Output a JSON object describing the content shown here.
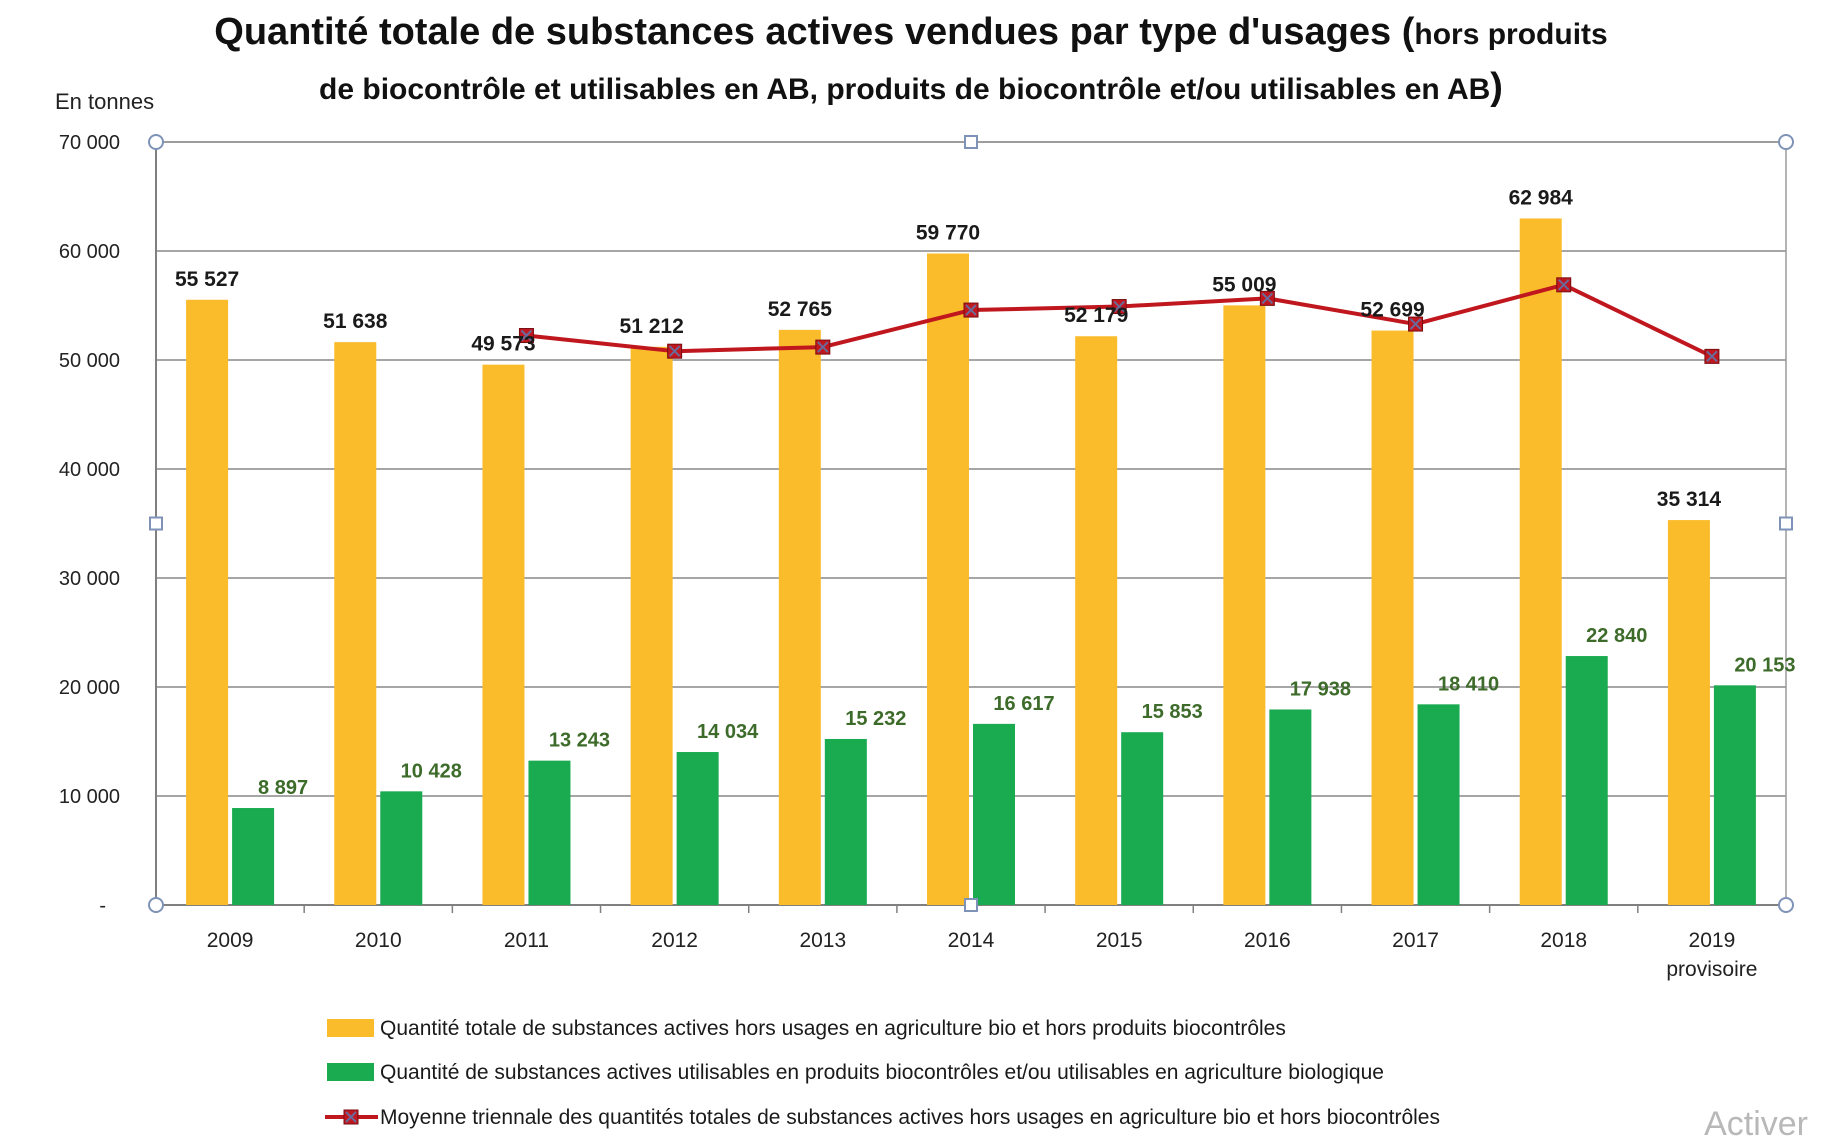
{
  "chart_data": {
    "type": "bar",
    "title_main": "Quantité totale de substances actives vendues par type d'usages (",
    "title_small": "hors produits",
    "subtitle": "de biocontrôle et utilisables en AB, produits de biocontrôle et/ou utilisables en AB",
    "title_close_paren": ")",
    "ylabel": "En tonnes",
    "ylim": [
      0,
      70000
    ],
    "yticks": [
      {
        "value": 0,
        "label": "-"
      },
      {
        "value": 10000,
        "label": "10 000"
      },
      {
        "value": 20000,
        "label": "20 000"
      },
      {
        "value": 30000,
        "label": "30 000"
      },
      {
        "value": 40000,
        "label": "40 000"
      },
      {
        "value": 50000,
        "label": "50 000"
      },
      {
        "value": 60000,
        "label": "60 000"
      },
      {
        "value": 70000,
        "label": "70 000"
      }
    ],
    "grid": true,
    "categories": [
      "2009",
      "2010",
      "2011",
      "2012",
      "2013",
      "2014",
      "2015",
      "2016",
      "2017",
      "2018",
      "2019"
    ],
    "category_sublabels": [
      "",
      "",
      "",
      "",
      "",
      "",
      "",
      "",
      "",
      "",
      "provisoire"
    ],
    "series": [
      {
        "name": "Quantité totale de substances actives hors usages en agriculture bio et hors produits biocontrôles",
        "kind": "bar",
        "color": "#fbbc2b",
        "values": [
          55527,
          51638,
          49573,
          51212,
          52765,
          59770,
          52179,
          55009,
          52699,
          62984,
          35314
        ],
        "labels": [
          "55 527",
          "51 638",
          "49 573",
          "51 212",
          "52 765",
          "59 770",
          "52 179",
          "55 009",
          "52 699",
          "62 984",
          "35 314"
        ]
      },
      {
        "name": "Quantité de substances actives utilisables en  produits biocontrôles et/ou utilisables en agriculture biologique",
        "kind": "bar",
        "color": "#1aaa50",
        "values": [
          8897,
          10428,
          13243,
          14034,
          15232,
          16617,
          15853,
          17938,
          18410,
          22840,
          20153
        ],
        "labels": [
          "8 897",
          "10 428",
          "13 243",
          "14 034",
          "15 232",
          "16 617",
          "15 853",
          "17 938",
          "18 410",
          "22 840",
          "20 153"
        ]
      },
      {
        "name": "Moyenne triennale des quantités totales de substances actives hors usages en agriculture bio et hors biocontrôles",
        "kind": "line",
        "color": "#c0171f",
        "values": [
          null,
          null,
          52246,
          50808,
          51183,
          54582,
          54905,
          55653,
          53296,
          56897,
          50332
        ]
      }
    ],
    "legend_position": "bottom"
  },
  "watermark": "Activer"
}
